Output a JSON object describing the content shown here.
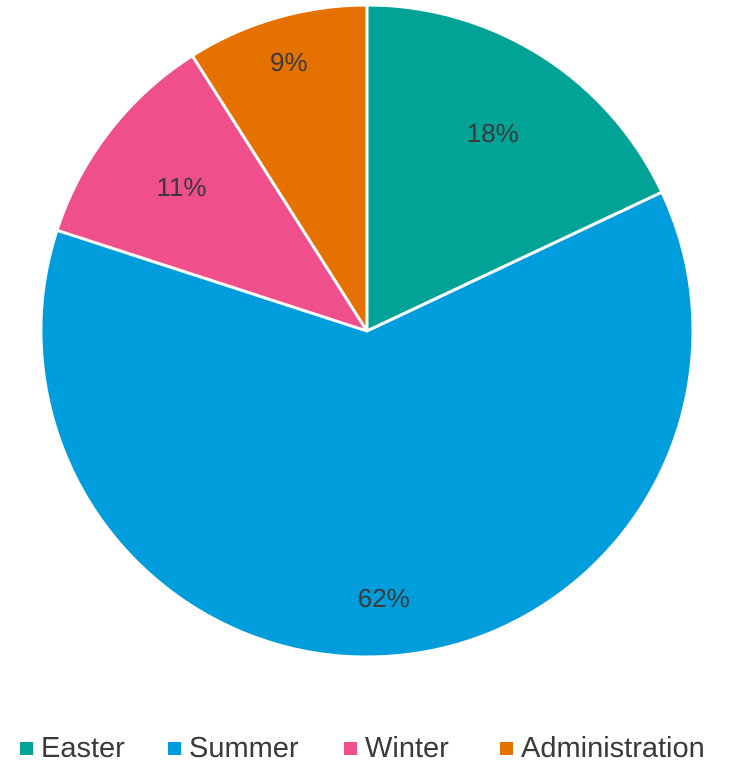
{
  "chart_data": {
    "type": "pie",
    "categories": [
      "Easter",
      "Summer",
      "Winter",
      "Administration"
    ],
    "values": [
      18,
      62,
      11,
      9
    ],
    "labels": [
      "18%",
      "62%",
      "11%",
      "9%"
    ],
    "colors": [
      "#00A396",
      "#009DDC",
      "#EF4F8A",
      "#E57200"
    ],
    "start_angle_deg": 0,
    "direction": "clockwise",
    "legend_position": "bottom"
  },
  "legend": {
    "items": [
      {
        "label": "Easter",
        "color": "#00A396"
      },
      {
        "label": "Summer",
        "color": "#009DDC"
      },
      {
        "label": "Winter",
        "color": "#EF4F8A"
      },
      {
        "label": "Administration",
        "color": "#E57200"
      }
    ]
  }
}
